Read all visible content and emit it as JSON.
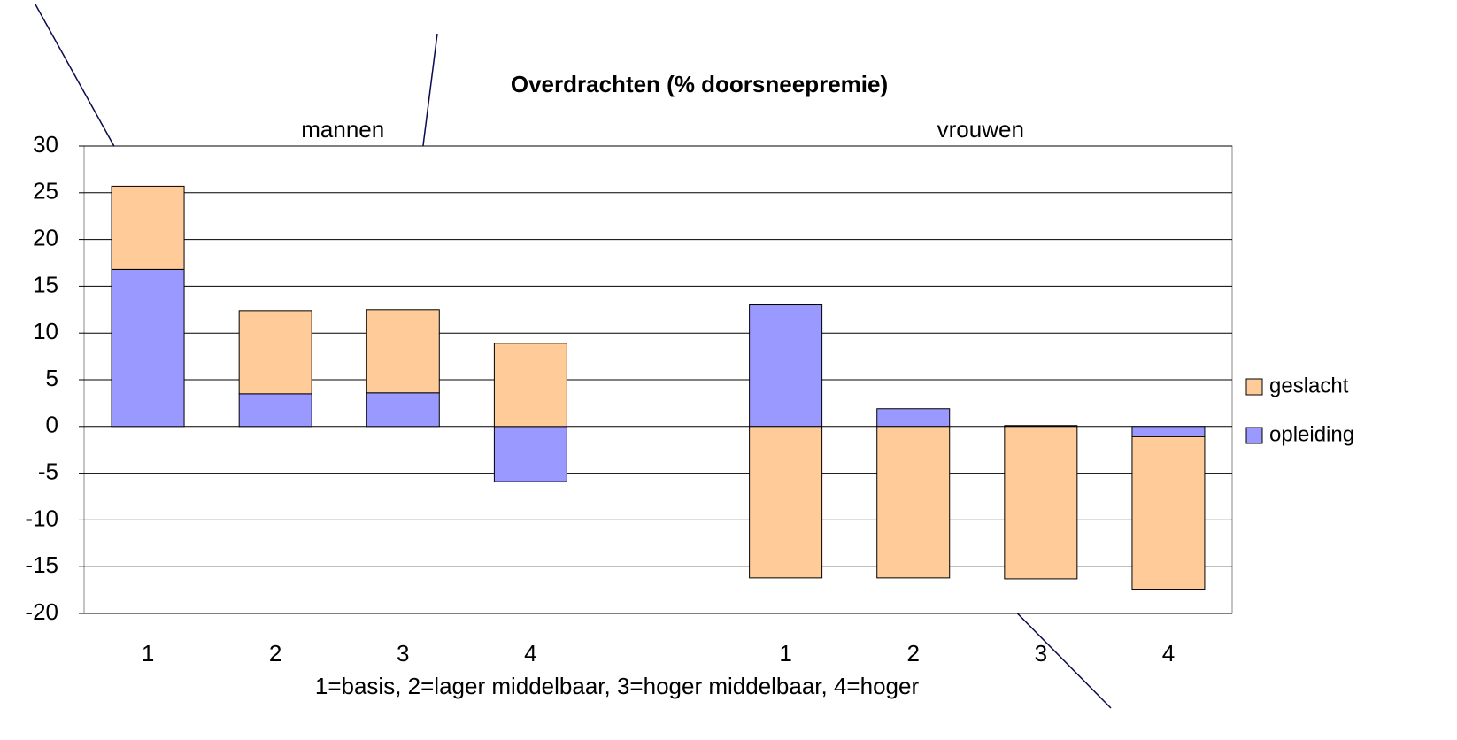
{
  "chart_data": {
    "type": "bar",
    "stacked": true,
    "title": "Overdrachten (% doorsneepremie)",
    "group_labels": [
      "mannen",
      "vrouwen"
    ],
    "x_label": "1=basis, 2=lager middelbaar, 3=hoger middelbaar, 4=hoger",
    "categories": [
      "1",
      "2",
      "3",
      "4",
      null,
      "1",
      "2",
      "3",
      "4"
    ],
    "series": [
      {
        "name": "opleiding",
        "color": "#9999ff",
        "values": [
          16.8,
          3.5,
          3.6,
          -5.9,
          null,
          13.0,
          1.9,
          0.1,
          -1.1
        ]
      },
      {
        "name": "geslacht",
        "color": "#ffcc99",
        "values": [
          8.9,
          8.9,
          8.9,
          8.9,
          null,
          -16.2,
          -16.2,
          -16.3,
          -16.3
        ]
      }
    ],
    "ylim": [
      -20,
      30
    ],
    "yticks": [
      -20,
      -15,
      -10,
      -5,
      0,
      5,
      10,
      15,
      20,
      25,
      30
    ],
    "grid": true,
    "legend": "right"
  }
}
